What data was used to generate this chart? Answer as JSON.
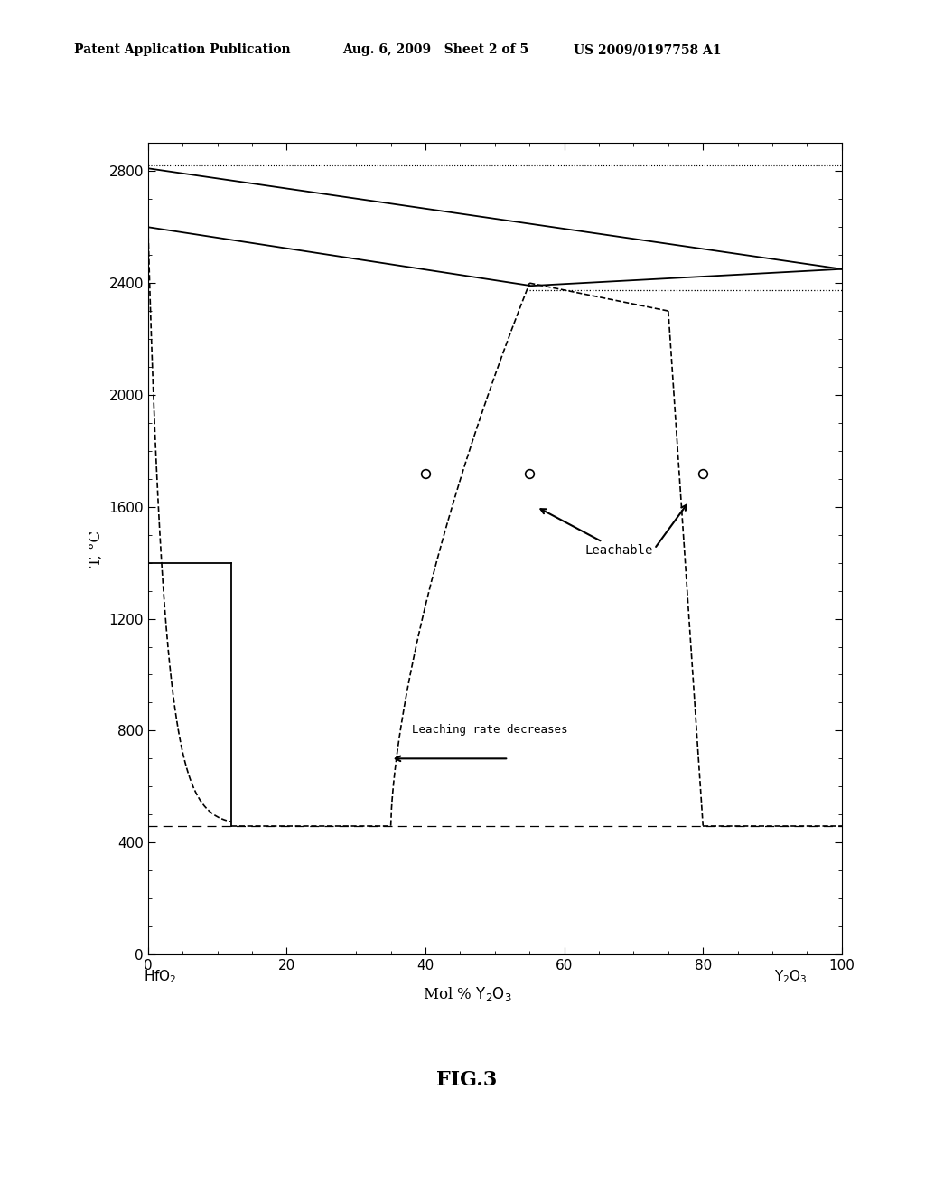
{
  "header_left": "Patent Application Publication",
  "header_mid": "Aug. 6, 2009   Sheet 2 of 5",
  "header_right": "US 2009/0197758 A1",
  "figure_label": "FIG.3",
  "ylabel": "T, °C",
  "xlim": [
    0,
    100
  ],
  "ylim": [
    0,
    2900
  ],
  "yticks": [
    0,
    400,
    800,
    1200,
    1600,
    2000,
    2400,
    2800
  ],
  "xticks": [
    0,
    20,
    40,
    60,
    80,
    100
  ],
  "background_color": "#ffffff",
  "circle_points": [
    [
      40,
      1720
    ],
    [
      55,
      1720
    ],
    [
      80,
      1720
    ]
  ],
  "horizontal_dashed_y": 460
}
